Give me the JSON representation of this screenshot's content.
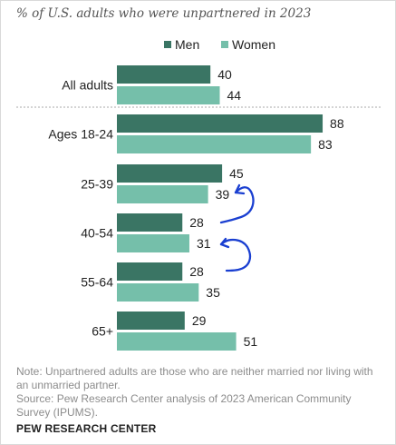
{
  "chart_data": {
    "type": "bar",
    "orientation": "horizontal",
    "title": "% of U.S. adults who were unpartnered in 2023",
    "categories": [
      "All adults",
      "Ages 18-24",
      "25-39",
      "40-54",
      "55-64",
      "65+"
    ],
    "series": [
      {
        "name": "Men",
        "values": [
          40,
          88,
          45,
          28,
          28,
          29
        ]
      },
      {
        "name": "Women",
        "values": [
          44,
          83,
          39,
          31,
          35,
          51
        ]
      }
    ],
    "legend_position": "top",
    "grid": false
  },
  "colors": {
    "men": "#3a7564",
    "women": "#75bfaa",
    "annotation": "#1a3fd1"
  },
  "note_text": "Note: Unpartnered adults are those who are neither married nor living with an unmarried partner.",
  "source_text": "Source: Pew Research Center analysis of 2023 American Community Survey (IPUMS).",
  "footer_text": "PEW RESEARCH CENTER"
}
